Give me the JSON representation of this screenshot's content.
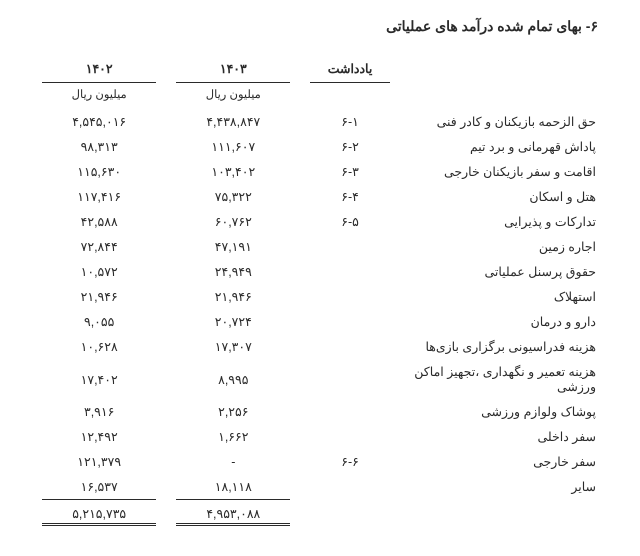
{
  "title": "۶- بهای تمام شده درآمد های عملیاتی",
  "headers": {
    "note": "یادداشت",
    "year_current": "۱۴۰۳",
    "year_prior": "۱۴۰۲",
    "unit": "میلیون ریال"
  },
  "rows": [
    {
      "desc": "حق الزحمه بازیکنان و کادر فنی",
      "note": "۶-۱",
      "cur": "۴,۴۳۸,۸۴۷",
      "prior": "۴,۵۴۵,۰۱۶"
    },
    {
      "desc": "پاداش قهرمانی و برد تیم",
      "note": "۶-۲",
      "cur": "۱۱۱,۶۰۷",
      "prior": "۹۸,۳۱۳"
    },
    {
      "desc": "اقامت و سفر بازیکنان خارجی",
      "note": "۶-۳",
      "cur": "۱۰۳,۴۰۲",
      "prior": "۱۱۵,۶۳۰"
    },
    {
      "desc": "هتل و اسکان",
      "note": "۶-۴",
      "cur": "۷۵,۳۲۲",
      "prior": "۱۱۷,۴۱۶"
    },
    {
      "desc": "تدارکات و پذیرایی",
      "note": "۶-۵",
      "cur": "۶۰,۷۶۲",
      "prior": "۴۲,۵۸۸"
    },
    {
      "desc": "اجاره زمین",
      "note": "",
      "cur": "۴۷,۱۹۱",
      "prior": "۷۲,۸۴۴"
    },
    {
      "desc": "حقوق پرسنل عملیاتی",
      "note": "",
      "cur": "۲۴,۹۴۹",
      "prior": "۱۰,۵۷۲"
    },
    {
      "desc": "استهلاک",
      "note": "",
      "cur": "۲۱,۹۴۶",
      "prior": "۲۱,۹۴۶"
    },
    {
      "desc": "دارو و درمان",
      "note": "",
      "cur": "۲۰,۷۲۴",
      "prior": "۹,۰۵۵"
    },
    {
      "desc": "هزینه  فدراسیونی برگزاری بازی‌ها",
      "note": "",
      "cur": "۱۷,۳۰۷",
      "prior": "۱۰,۶۲۸"
    },
    {
      "desc": "هزینه تعمیر و نگهداری ،تجهیز اماکن ورزشی",
      "note": "",
      "cur": "۸,۹۹۵",
      "prior": "۱۷,۴۰۲"
    },
    {
      "desc": "پوشاک ولوازم ورزشی",
      "note": "",
      "cur": "۲,۲۵۶",
      "prior": "۳,۹۱۶"
    },
    {
      "desc": "سفر داخلی",
      "note": "",
      "cur": "۱,۶۶۲",
      "prior": "۱۲,۴۹۲"
    },
    {
      "desc": "سفر خارجی",
      "note": "۶-۶",
      "cur": "-",
      "prior": "۱۲۱,۳۷۹"
    },
    {
      "desc": "سایر",
      "note": "",
      "cur": "۱۸,۱۱۸",
      "prior": "۱۶,۵۳۷"
    }
  ],
  "totals": {
    "cur": "۴,۹۵۳,۰۸۸",
    "prior": "۵,۲۱۵,۷۳۵"
  }
}
